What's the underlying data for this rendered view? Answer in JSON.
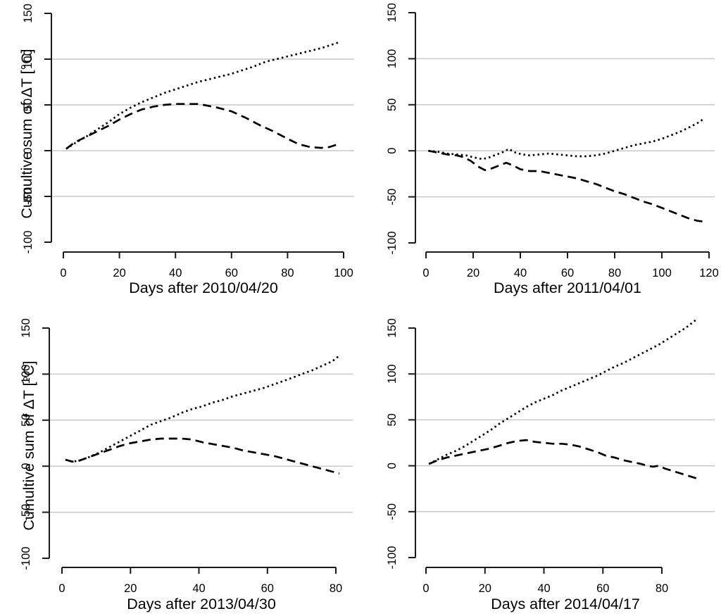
{
  "colors": {
    "axis": "#1a1a1a",
    "grid": "#c9c9c9",
    "line": "#000000",
    "text": "#000000",
    "background": "#ffffff"
  },
  "chart_data": [
    {
      "type": "line",
      "panel": "top-left",
      "title": "",
      "xlabel": "Days after 2010/04/20",
      "ylabel": "Cumultive sum of ΔT [°C]",
      "xlim": [
        0,
        100
      ],
      "ylim": [
        -100,
        150
      ],
      "xticks": [
        0,
        20,
        40,
        60,
        80,
        100
      ],
      "yticks": [
        -100,
        -50,
        0,
        50,
        100,
        150
      ],
      "gridlines": [
        -50,
        0,
        50,
        100
      ],
      "grid": true,
      "legend": "none",
      "series": [
        {
          "name": "dotted",
          "style": "dotted",
          "points": [
            [
              1,
              2
            ],
            [
              4,
              8
            ],
            [
              8,
              15
            ],
            [
              12,
              23
            ],
            [
              16,
              31
            ],
            [
              20,
              40
            ],
            [
              24,
              47
            ],
            [
              28,
              53
            ],
            [
              32,
              58
            ],
            [
              36,
              63
            ],
            [
              40,
              67
            ],
            [
              44,
              71
            ],
            [
              48,
              75
            ],
            [
              52,
              78
            ],
            [
              56,
              81
            ],
            [
              60,
              84
            ],
            [
              64,
              88
            ],
            [
              68,
              92
            ],
            [
              72,
              97
            ],
            [
              76,
              100
            ],
            [
              80,
              103
            ],
            [
              84,
              106
            ],
            [
              88,
              109
            ],
            [
              92,
              112
            ],
            [
              95,
              115
            ],
            [
              98,
              118
            ]
          ]
        },
        {
          "name": "dashed",
          "style": "dashed",
          "points": [
            [
              1,
              2
            ],
            [
              4,
              9
            ],
            [
              8,
              15
            ],
            [
              12,
              21
            ],
            [
              16,
              27
            ],
            [
              20,
              34
            ],
            [
              24,
              40
            ],
            [
              28,
              45
            ],
            [
              32,
              48
            ],
            [
              36,
              50
            ],
            [
              40,
              51
            ],
            [
              44,
              51
            ],
            [
              48,
              51
            ],
            [
              50,
              50
            ],
            [
              55,
              47
            ],
            [
              60,
              43
            ],
            [
              65,
              36
            ],
            [
              70,
              28
            ],
            [
              75,
              21
            ],
            [
              80,
              13
            ],
            [
              84,
              7
            ],
            [
              88,
              4
            ],
            [
              92,
              3
            ],
            [
              95,
              4
            ],
            [
              98,
              7
            ]
          ]
        }
      ]
    },
    {
      "type": "line",
      "panel": "top-right",
      "title": "",
      "xlabel": "Days after 2011/04/01",
      "xlim": [
        0,
        120
      ],
      "ylim": [
        -100,
        150
      ],
      "xticks": [
        0,
        20,
        40,
        60,
        80,
        100,
        120
      ],
      "yticks": [
        -100,
        -50,
        0,
        50,
        100,
        150
      ],
      "gridlines": [
        -50,
        0,
        50,
        100
      ],
      "grid": true,
      "legend": "none",
      "series": [
        {
          "name": "dotted",
          "style": "dotted",
          "points": [
            [
              1,
              0
            ],
            [
              5,
              -1
            ],
            [
              9,
              -3
            ],
            [
              13,
              -4
            ],
            [
              17,
              -5
            ],
            [
              20,
              -7
            ],
            [
              24,
              -9
            ],
            [
              27,
              -7
            ],
            [
              30,
              -4
            ],
            [
              33,
              -1
            ],
            [
              35,
              2
            ],
            [
              38,
              -2
            ],
            [
              41,
              -4
            ],
            [
              44,
              -5
            ],
            [
              48,
              -4
            ],
            [
              52,
              -3
            ],
            [
              56,
              -4
            ],
            [
              60,
              -5
            ],
            [
              64,
              -6
            ],
            [
              68,
              -6
            ],
            [
              72,
              -5
            ],
            [
              76,
              -3
            ],
            [
              80,
              0
            ],
            [
              84,
              3
            ],
            [
              88,
              6
            ],
            [
              92,
              8
            ],
            [
              96,
              10
            ],
            [
              100,
              13
            ],
            [
              104,
              17
            ],
            [
              108,
              21
            ],
            [
              112,
              26
            ],
            [
              115,
              30
            ],
            [
              118,
              35
            ]
          ]
        },
        {
          "name": "dashed",
          "style": "dashed",
          "points": [
            [
              1,
              0
            ],
            [
              5,
              -2
            ],
            [
              9,
              -4
            ],
            [
              13,
              -5
            ],
            [
              16,
              -7
            ],
            [
              19,
              -11
            ],
            [
              22,
              -17
            ],
            [
              25,
              -21
            ],
            [
              28,
              -19
            ],
            [
              31,
              -16
            ],
            [
              34,
              -13
            ],
            [
              37,
              -16
            ],
            [
              40,
              -20
            ],
            [
              44,
              -22
            ],
            [
              48,
              -22
            ],
            [
              52,
              -24
            ],
            [
              56,
              -26
            ],
            [
              60,
              -28
            ],
            [
              64,
              -30
            ],
            [
              68,
              -33
            ],
            [
              72,
              -36
            ],
            [
              76,
              -40
            ],
            [
              80,
              -44
            ],
            [
              84,
              -47
            ],
            [
              88,
              -51
            ],
            [
              92,
              -55
            ],
            [
              96,
              -58
            ],
            [
              100,
              -62
            ],
            [
              104,
              -66
            ],
            [
              108,
              -70
            ],
            [
              112,
              -74
            ],
            [
              115,
              -76
            ],
            [
              118,
              -77
            ]
          ]
        }
      ]
    },
    {
      "type": "line",
      "panel": "bottom-left",
      "title": "",
      "xlabel": "Days after 2013/04/30",
      "ylabel": "Cumultive sum of ΔT [°C]",
      "xlim": [
        0,
        80
      ],
      "ylim": [
        -100,
        150
      ],
      "xticks": [
        0,
        20,
        40,
        60,
        80
      ],
      "yticks": [
        -100,
        -50,
        0,
        50,
        100,
        150
      ],
      "gridlines": [
        -50,
        0,
        50,
        100
      ],
      "grid": true,
      "legend": "none",
      "series": [
        {
          "name": "dotted",
          "style": "dotted",
          "points": [
            [
              1,
              7
            ],
            [
              3,
              5
            ],
            [
              5,
              6
            ],
            [
              8,
              10
            ],
            [
              11,
              15
            ],
            [
              14,
              21
            ],
            [
              17,
              27
            ],
            [
              20,
              33
            ],
            [
              23,
              39
            ],
            [
              26,
              45
            ],
            [
              29,
              49
            ],
            [
              32,
              53
            ],
            [
              35,
              58
            ],
            [
              38,
              62
            ],
            [
              41,
              65
            ],
            [
              44,
              69
            ],
            [
              47,
              72
            ],
            [
              50,
              76
            ],
            [
              53,
              79
            ],
            [
              56,
              82
            ],
            [
              59,
              85
            ],
            [
              62,
              89
            ],
            [
              65,
              93
            ],
            [
              68,
              97
            ],
            [
              70,
              100
            ],
            [
              73,
              104
            ],
            [
              76,
              109
            ],
            [
              79,
              114
            ],
            [
              81,
              120
            ]
          ]
        },
        {
          "name": "dashed",
          "style": "dashed",
          "points": [
            [
              1,
              7
            ],
            [
              3,
              5
            ],
            [
              5,
              6
            ],
            [
              8,
              10
            ],
            [
              11,
              14
            ],
            [
              14,
              18
            ],
            [
              17,
              22
            ],
            [
              20,
              25
            ],
            [
              23,
              27
            ],
            [
              26,
              29
            ],
            [
              29,
              30
            ],
            [
              32,
              30
            ],
            [
              35,
              30
            ],
            [
              38,
              29
            ],
            [
              41,
              26
            ],
            [
              44,
              24
            ],
            [
              47,
              22
            ],
            [
              50,
              20
            ],
            [
              53,
              17
            ],
            [
              56,
              15
            ],
            [
              59,
              13
            ],
            [
              62,
              11
            ],
            [
              65,
              8
            ],
            [
              68,
              5
            ],
            [
              71,
              2
            ],
            [
              74,
              -1
            ],
            [
              77,
              -4
            ],
            [
              79,
              -6
            ],
            [
              81,
              -8
            ]
          ]
        }
      ]
    },
    {
      "type": "line",
      "panel": "bottom-right",
      "title": "",
      "xlabel": "Days after 2014/04/17",
      "xlim": [
        0,
        80
      ],
      "ylim": [
        -100,
        150
      ],
      "xticks": [
        0,
        20,
        40,
        60,
        80
      ],
      "yticks": [
        -100,
        -50,
        0,
        50,
        100,
        150
      ],
      "gridlines": [
        -50,
        0,
        50,
        100
      ],
      "grid": true,
      "legend": "none",
      "series": [
        {
          "name": "dotted",
          "style": "dotted",
          "points": [
            [
              1,
              2
            ],
            [
              4,
              7
            ],
            [
              7,
              12
            ],
            [
              10,
              16
            ],
            [
              13,
              21
            ],
            [
              16,
              27
            ],
            [
              19,
              33
            ],
            [
              22,
              39
            ],
            [
              25,
              46
            ],
            [
              28,
              52
            ],
            [
              31,
              58
            ],
            [
              34,
              64
            ],
            [
              37,
              69
            ],
            [
              40,
              73
            ],
            [
              43,
              77
            ],
            [
              46,
              82
            ],
            [
              49,
              86
            ],
            [
              52,
              90
            ],
            [
              55,
              94
            ],
            [
              58,
              98
            ],
            [
              61,
              103
            ],
            [
              64,
              108
            ],
            [
              67,
              112
            ],
            [
              70,
              117
            ],
            [
              73,
              122
            ],
            [
              76,
              127
            ],
            [
              79,
              132
            ],
            [
              82,
              138
            ],
            [
              85,
              144
            ],
            [
              88,
              150
            ],
            [
              90,
              155
            ],
            [
              92,
              160
            ]
          ]
        },
        {
          "name": "dashed",
          "style": "dashed",
          "points": [
            [
              1,
              2
            ],
            [
              4,
              6
            ],
            [
              7,
              9
            ],
            [
              10,
              11
            ],
            [
              13,
              13
            ],
            [
              16,
              15
            ],
            [
              19,
              17
            ],
            [
              22,
              19
            ],
            [
              25,
              22
            ],
            [
              28,
              25
            ],
            [
              31,
              27
            ],
            [
              34,
              28
            ],
            [
              37,
              26
            ],
            [
              40,
              25
            ],
            [
              43,
              24
            ],
            [
              46,
              24
            ],
            [
              49,
              23
            ],
            [
              52,
              21
            ],
            [
              55,
              18
            ],
            [
              58,
              15
            ],
            [
              61,
              11
            ],
            [
              64,
              9
            ],
            [
              67,
              6
            ],
            [
              70,
              4
            ],
            [
              73,
              2
            ],
            [
              75,
              0
            ],
            [
              77,
              -1
            ],
            [
              79,
              0
            ],
            [
              81,
              -3
            ],
            [
              84,
              -6
            ],
            [
              87,
              -9
            ],
            [
              90,
              -12
            ],
            [
              92,
              -14
            ]
          ]
        }
      ]
    }
  ]
}
